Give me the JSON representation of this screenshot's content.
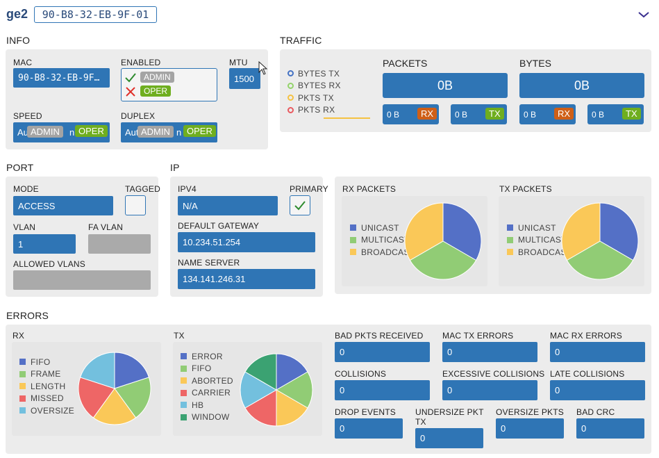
{
  "header": {
    "interface_name": "ge2",
    "mac_box": "90-B8-32-EB-9F-01"
  },
  "sections": {
    "info": "INFO",
    "traffic": "TRAFFIC",
    "port": "PORT",
    "ip": "IP",
    "errors": "ERRORS"
  },
  "info": {
    "mac_label": "MAC",
    "mac_value": "90-B8-32-EB-9F…",
    "enabled_label": "ENABLED",
    "admin_badge": "ADMIN",
    "oper_badge": "OPER",
    "mtu_label": "MTU",
    "mtu_value": "1500",
    "speed_label": "SPEED",
    "speed_text_left": "Au",
    "speed_text_right": "n",
    "duplex_label": "DUPLEX",
    "duplex_text_left": "Aut",
    "duplex_text_right": "n"
  },
  "traffic": {
    "legend": [
      "BYTES TX",
      "BYTES RX",
      "PKTS TX",
      "PKTS RX"
    ],
    "legend_colors": [
      "#4472c4",
      "#93d36b",
      "#f5c242",
      "#e9595f"
    ],
    "packets_title": "PACKETS",
    "packets_total": "0B",
    "bytes_title": "BYTES",
    "bytes_total": "0B",
    "packets_rx_value": "0 B",
    "packets_tx_value": "0 B",
    "bytes_rx_value": "0 B",
    "bytes_tx_value": "0 B",
    "rx_tag": "RX",
    "tx_tag": "TX"
  },
  "port": {
    "mode_label": "MODE",
    "mode_value": "ACCESS",
    "tagged_label": "TAGGED",
    "vlan_label": "VLAN",
    "vlan_value": "1",
    "fa_vlan_label": "FA VLAN",
    "allowed_vlans_label": "ALLOWED VLANS"
  },
  "ip": {
    "ipv4_label": "IPV4",
    "ipv4_value": "N/A",
    "primary_label": "PRIMARY",
    "gateway_label": "DEFAULT GATEWAY",
    "gateway_value": "10.234.51.254",
    "nameserver_label": "NAME SERVER",
    "nameserver_value": "134.141.246.31"
  },
  "colors": {
    "field": "#2f75b5",
    "panel": "#ececec",
    "blue": "#5470c6",
    "green": "#91cc75",
    "yellow": "#fac858",
    "red": "#ee6666",
    "cyan": "#73c0de",
    "teal": "#3ba272"
  },
  "chart_data": [
    {
      "type": "pie",
      "title": "RX PACKETS",
      "categories": [
        "UNICAST",
        "MULTICAST",
        "BROADCAST"
      ],
      "values": [
        1,
        1,
        1
      ],
      "colors": [
        "#5470c6",
        "#91cc75",
        "#fac858"
      ]
    },
    {
      "type": "pie",
      "title": "TX PACKETS",
      "categories": [
        "UNICAST",
        "MULTICAST",
        "BROADCAST"
      ],
      "values": [
        1,
        1,
        1
      ],
      "colors": [
        "#5470c6",
        "#91cc75",
        "#fac858"
      ]
    },
    {
      "type": "pie",
      "title": "RX",
      "categories": [
        "FIFO",
        "FRAME",
        "LENGTH",
        "MISSED",
        "OVERSIZE"
      ],
      "values": [
        1,
        1,
        1,
        1,
        1
      ],
      "colors": [
        "#5470c6",
        "#91cc75",
        "#fac858",
        "#ee6666",
        "#73c0de"
      ]
    },
    {
      "type": "pie",
      "title": "TX",
      "categories": [
        "ERROR",
        "FIFO",
        "ABORTED",
        "CARRIER",
        "HB",
        "WINDOW"
      ],
      "values": [
        1,
        1,
        1,
        1,
        1,
        1
      ],
      "colors": [
        "#5470c6",
        "#91cc75",
        "#fac858",
        "#ee6666",
        "#73c0de",
        "#3ba272"
      ]
    }
  ],
  "errors": {
    "counters": [
      {
        "label": "BAD PKTS RECEIVED",
        "value": "0"
      },
      {
        "label": "MAC TX ERRORS",
        "value": "0"
      },
      {
        "label": "MAC RX ERRORS",
        "value": "0"
      },
      {
        "label": "COLLISIONS",
        "value": "0"
      },
      {
        "label": "EXCESSIVE COLLISIONS",
        "value": "0"
      },
      {
        "label": "LATE COLLISIONS",
        "value": "0"
      },
      {
        "label": "DROP EVENTS",
        "value": "0"
      },
      {
        "label": "UNDERSIZE PKT TX",
        "value": "0"
      },
      {
        "label": "OVERSIZE PKTS",
        "value": "0"
      },
      {
        "label": "BAD CRC",
        "value": "0"
      }
    ]
  },
  "icons": {
    "collapse": "chevron-down-icon",
    "cursor": "mouse-pointer-icon"
  }
}
